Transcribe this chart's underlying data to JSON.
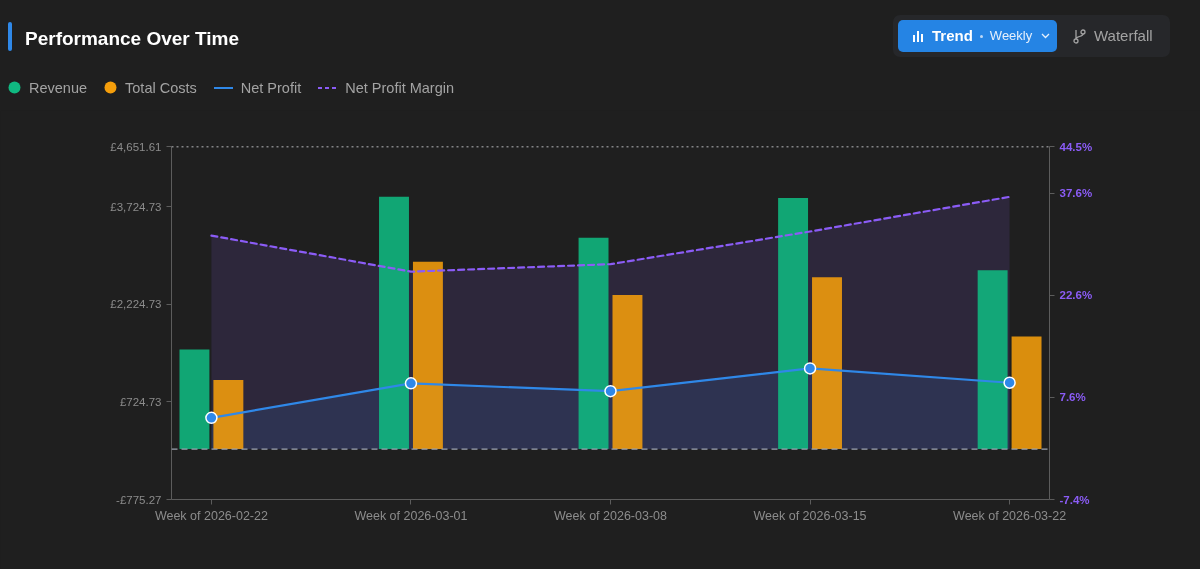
{
  "chart_data": {
    "type": "bar",
    "title": "Performance Over Time",
    "categories": [
      "Week of 2026-02-22",
      "Week of 2026-03-01",
      "Week of 2026-03-08",
      "Week of 2026-03-15",
      "Week of 2026-03-22"
    ],
    "series": [
      {
        "name": "Revenue",
        "color": "#10b981",
        "values": [
          1530,
          3880,
          3250,
          3860,
          2750
        ]
      },
      {
        "name": "Total Costs",
        "color": "#f59e0b",
        "values": [
          1060,
          2880,
          2370,
          2640,
          1730
        ]
      },
      {
        "name": "Net Profit",
        "type": "area",
        "color": "#2f88e8",
        "marker": "circle",
        "values": [
          480,
          1010,
          890,
          1240,
          1020
        ]
      },
      {
        "name": "Net Profit Margin",
        "type": "area",
        "color": "#8b5cf6",
        "line_style": "dashed",
        "axis": "y2",
        "values": [
          31.4,
          26.1,
          27.2,
          32.0,
          37.1
        ]
      }
    ],
    "ylim": [
      -775.27,
      4651.61
    ],
    "yticks": [
      {
        "value": -775.27,
        "label": "-£775.27"
      },
      {
        "value": 724.73,
        "label": "£724.73"
      },
      {
        "value": 2224.73,
        "label": "£2,224.73"
      },
      {
        "value": 3724.73,
        "label": "£3,724.73"
      },
      {
        "value": 4651.61,
        "label": "£4,651.61"
      }
    ],
    "y2lim": [
      -7.4,
      44.5
    ],
    "y2ticks": [
      {
        "value": -7.4,
        "label": "-7.4%"
      },
      {
        "value": 7.6,
        "label": "7.6%"
      },
      {
        "value": 22.6,
        "label": "22.6%"
      },
      {
        "value": 37.6,
        "label": "37.6%"
      },
      {
        "value": 44.5,
        "label": "44.5%"
      }
    ],
    "ref_lines": [
      {
        "axis": "y",
        "value": 0,
        "color": "#9ca3af",
        "line_style": "dashed"
      },
      {
        "axis": "y",
        "value": 4651.61,
        "color": "#e5e7eb",
        "line_style": "dotted"
      }
    ],
    "legend": "top left",
    "annotations": [
      "Trend",
      "Weekly",
      "Waterfall"
    ]
  }
}
